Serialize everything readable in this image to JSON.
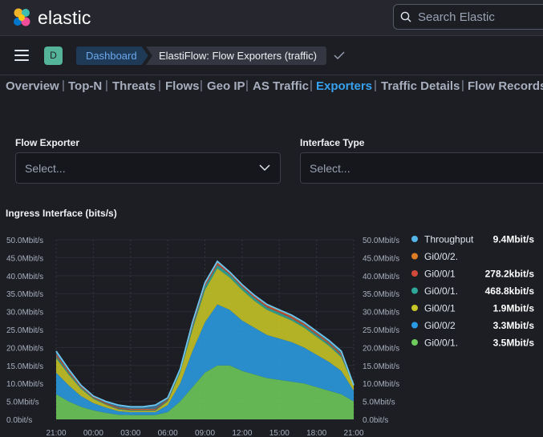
{
  "header": {
    "brand": "elastic",
    "search_placeholder": "Search Elastic"
  },
  "breadcrumbs": {
    "space_initial": "D",
    "items": [
      "Dashboard",
      "ElastiFlow: Flow Exporters (traffic)"
    ]
  },
  "tabs": [
    "Overview",
    "Top-N",
    "Threats",
    "Flows",
    "Geo IP",
    "AS Traffic",
    "Exporters",
    "Traffic Details",
    "Flow Records"
  ],
  "active_tab": "Exporters",
  "controls": [
    {
      "label": "Flow Exporter",
      "placeholder": "Select..."
    },
    {
      "label": "Interface Type",
      "placeholder": "Select..."
    }
  ],
  "colors": {
    "accent": "#36a2ef",
    "throughput": "#54b6e8",
    "throughput_line": "#6bc6f2"
  },
  "chart_data": {
    "type": "area",
    "title": "Ingress Interface (bits/s)",
    "x_ticks": [
      "21:00",
      "00:00",
      "03:00",
      "06:00",
      "09:00",
      "12:00",
      "15:00",
      "18:00",
      "21:00"
    ],
    "y_ticks": [
      "0.0bit/s",
      "5.0Mbit/s",
      "10.0Mbit/s",
      "15.0Mbit/s",
      "20.0Mbit/s",
      "25.0Mbit/s",
      "30.0Mbit/s",
      "35.0Mbit/s",
      "40.0Mbit/s",
      "45.0Mbit/s",
      "50.0Mbit/s"
    ],
    "ylim": [
      0,
      50
    ],
    "unit": "Mbit/s",
    "x_hours": [
      0,
      1,
      2,
      3,
      4,
      5,
      6,
      7,
      8,
      9,
      10,
      11,
      12,
      13,
      14,
      15,
      16,
      17,
      18,
      19,
      20,
      21,
      22,
      23,
      24
    ],
    "series": [
      {
        "name": "Gi0/0/1",
        "color": "#6dcc5a",
        "values": [
          7,
          5,
          3.5,
          2.5,
          1.8,
          1.3,
          1.2,
          1.2,
          1.2,
          2,
          5,
          9,
          13,
          15,
          15,
          13.5,
          12.5,
          11.5,
          11,
          10.5,
          10,
          9,
          8,
          7,
          5
        ]
      },
      {
        "name": "Gi0/0/2",
        "color": "#2b9ce3",
        "values": [
          6,
          4.5,
          3,
          2,
          1.5,
          1,
          0.8,
          0.8,
          0.8,
          2,
          5,
          10,
          14,
          17,
          15.5,
          14,
          13,
          12,
          11.5,
          11,
          10,
          9,
          8,
          6.5,
          3
        ]
      },
      {
        "name": "Gi0/0/1",
        "color": "#c8c627",
        "values": [
          4,
          3,
          2,
          1.2,
          0.8,
          0.5,
          0.4,
          0.4,
          0.4,
          1,
          3,
          6,
          9,
          10,
          9,
          8.5,
          7.5,
          7,
          6.5,
          6,
          5.5,
          5,
          4.5,
          3.8,
          1.5
        ]
      },
      {
        "name": "Gi0/0/1",
        "color": "#2fa89a",
        "values": [
          0.6,
          0.5,
          0.4,
          0.3,
          0.2,
          0.2,
          0.2,
          0.2,
          0.2,
          0.3,
          0.5,
          0.8,
          1,
          1,
          0.9,
          0.8,
          0.8,
          0.7,
          0.7,
          0.6,
          0.6,
          0.6,
          0.5,
          0.5,
          0.3
        ]
      },
      {
        "name": "Gi0/0/1",
        "color": "#d04a3b",
        "values": [
          0.4,
          0.3,
          0.3,
          0.2,
          0.2,
          0.2,
          0.2,
          0.2,
          0.2,
          0.2,
          0.3,
          0.5,
          0.5,
          0.5,
          0.5,
          0.4,
          0.4,
          0.4,
          0.4,
          0.4,
          0.3,
          0.3,
          0.3,
          0.3,
          0.2
        ]
      },
      {
        "name": "Gi0/0/2.",
        "color": "#e07c24",
        "values": [
          0.2,
          0.2,
          0.1,
          0.1,
          0.1,
          0.1,
          0.1,
          0.1,
          0.1,
          0.1,
          0.2,
          0.2,
          0.2,
          0.2,
          0.2,
          0.2,
          0.2,
          0.2,
          0.2,
          0.2,
          0.2,
          0.2,
          0.2,
          0.2,
          0.1
        ]
      }
    ],
    "throughput": {
      "name": "Throughput",
      "color": "#6bc6f2",
      "values": [
        19,
        14,
        9.5,
        6.5,
        5,
        4,
        3.5,
        3.5,
        4,
        6,
        14,
        27,
        38,
        44,
        41,
        37.5,
        34.5,
        32,
        30.5,
        29,
        27,
        24.5,
        22,
        19,
        9.5
      ]
    },
    "legend": [
      {
        "name": "Throughput",
        "value": "9.4Mbit/s",
        "color": "#54b6e8"
      },
      {
        "name": "Gi0/0/2.",
        "value": "",
        "color": "#e07c24"
      },
      {
        "name": "Gi0/0/1",
        "value": "278.2kbit/s",
        "color": "#d04a3b"
      },
      {
        "name": "Gi0/0/1.",
        "value": "468.8kbit/s",
        "color": "#2fa89a"
      },
      {
        "name": "Gi0/0/1",
        "value": "1.9Mbit/s",
        "color": "#c8c627"
      },
      {
        "name": "Gi0/0/2",
        "value": "3.3Mbit/s",
        "color": "#2b9ce3"
      },
      {
        "name": "Gi0/0/1.",
        "value": "3.5Mbit/s",
        "color": "#6dcc5a"
      }
    ]
  }
}
